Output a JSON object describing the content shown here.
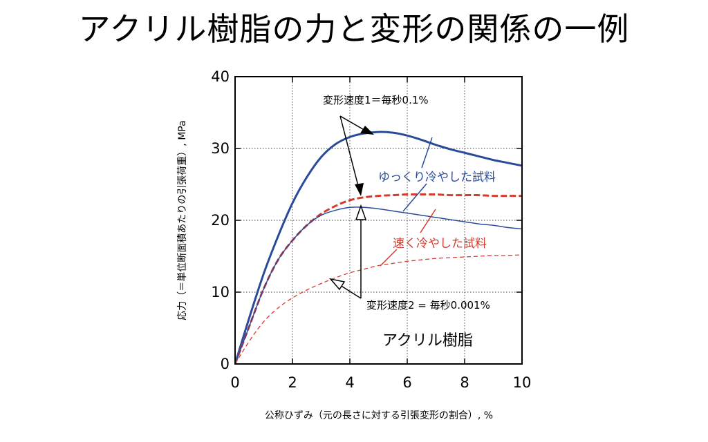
{
  "page": {
    "title": "アクリル樹脂の力と変形の関係の一例"
  },
  "chart_data": {
    "type": "line",
    "xlabel": "公称ひずみ（元の長さに対する引張変形の割合）, %",
    "ylabel": "応力（＝単位断面積あたりの引張荷重）, MPa",
    "xlim": [
      0,
      10
    ],
    "ylim": [
      0,
      40
    ],
    "x_ticks": [
      0,
      2,
      4,
      6,
      8,
      10
    ],
    "y_ticks": [
      0,
      10,
      20,
      30,
      40
    ],
    "grid": true,
    "colors": {
      "blue": "#2a4a9a",
      "red": "#d53a2e"
    },
    "series": [
      {
        "name": "ゆっくり冷やした試料",
        "rate": "変形速度1＝毎秒0.1%",
        "color": "#2a4a9a",
        "style": "solid-thick",
        "x": [
          0,
          0.5,
          1,
          1.5,
          2,
          2.5,
          3,
          3.5,
          4,
          4.5,
          5,
          5.5,
          6,
          6.5,
          7,
          7.5,
          8,
          8.5,
          9,
          9.5,
          10
        ],
        "y": [
          0,
          6.5,
          12.6,
          17.8,
          22.4,
          26,
          28.8,
          30.6,
          31.6,
          32.1,
          32.3,
          32.2,
          31.8,
          31.2,
          30.5,
          29.9,
          29.4,
          28.9,
          28.4,
          28,
          27.6
        ]
      },
      {
        "name": "速く冷やした試料",
        "rate": "変形速度1＝毎秒0.1%",
        "color": "#d53a2e",
        "style": "dashed-thick",
        "x": [
          0,
          0.5,
          1,
          1.5,
          2,
          2.5,
          3,
          3.5,
          4,
          4.5,
          5,
          5.5,
          6,
          6.5,
          7,
          7.5,
          8,
          8.5,
          9,
          9.5,
          10
        ],
        "y": [
          0,
          5.3,
          10.5,
          14.5,
          17.2,
          19.3,
          20.9,
          22,
          22.8,
          23.2,
          23.4,
          23.5,
          23.6,
          23.6,
          23.6,
          23.5,
          23.5,
          23.5,
          23.4,
          23.4,
          23.4
        ]
      },
      {
        "name": "ゆっくり冷やした試料",
        "rate": "変形速度2 = 毎秒0.001%",
        "color": "#2a4a9a",
        "style": "solid-thin",
        "x": [
          0,
          0.5,
          1,
          1.5,
          2,
          2.5,
          3,
          3.5,
          4,
          4.5,
          5,
          5.5,
          6,
          6.5,
          7,
          7.5,
          8,
          8.5,
          9,
          9.5,
          10
        ],
        "y": [
          0,
          5.3,
          10.5,
          14.5,
          17.2,
          19.3,
          20.7,
          21.4,
          21.8,
          21.8,
          21.6,
          21.3,
          21,
          20.7,
          20.4,
          20.1,
          19.8,
          19.5,
          19.3,
          19,
          18.8
        ]
      },
      {
        "name": "速く冷やした試料",
        "rate": "変形速度2 = 毎秒0.001%",
        "color": "#d53a2e",
        "style": "dashed-thin",
        "x": [
          0,
          0.5,
          1,
          1.5,
          2,
          2.5,
          3,
          3.5,
          4,
          4.5,
          5,
          5.5,
          6,
          6.5,
          7,
          7.5,
          8,
          8.5,
          9,
          9.5,
          10
        ],
        "y": [
          0,
          3.2,
          5.9,
          7.8,
          9.2,
          10.3,
          11.2,
          12,
          12.7,
          13.2,
          13.7,
          14,
          14.3,
          14.5,
          14.7,
          14.8,
          14.9,
          15,
          15.1,
          15.1,
          15.2
        ]
      }
    ],
    "annotations": {
      "rate1": "変形速度1＝毎秒0.1%",
      "rate2": "変形速度2 = 毎秒0.001%",
      "slow_cooled": "ゆっくり冷やした試料",
      "fast_cooled": "速く冷やした試料",
      "material": "アクリル樹脂"
    }
  }
}
